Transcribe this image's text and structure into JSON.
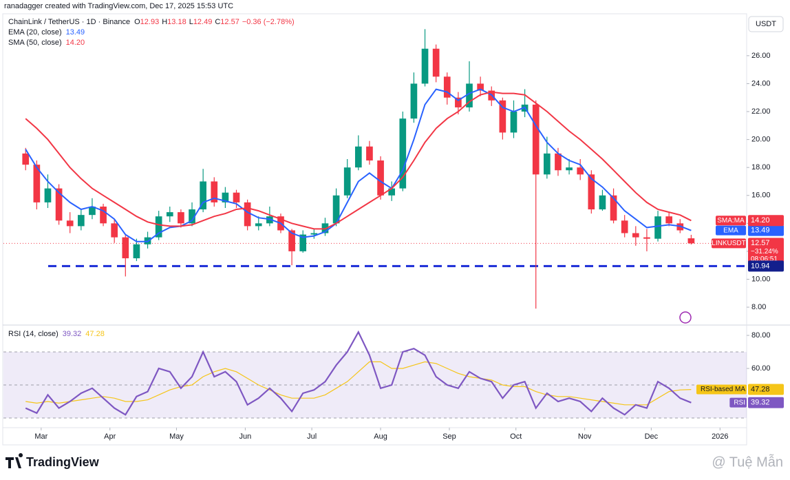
{
  "header": "ranadagger created with TradingView.com, Dec 17, 2025 15:53 UTC",
  "chart_data": [
    {
      "type": "candlestick",
      "title": "ChainLink / TetherUS · 1D · Binance",
      "ohlc_keys": [
        "O",
        "H",
        "L",
        "C"
      ],
      "change": "−0.36 (−2.78%)",
      "axis_unit": "USDT",
      "open": [
        19.0,
        18.2,
        15.5,
        16.5,
        14.2,
        13.8,
        14.6,
        15.2,
        14.0,
        13.0,
        11.5,
        12.5,
        13.0,
        14.5,
        14.8,
        14.0,
        15.0,
        17.0,
        15.5,
        16.2,
        15.5,
        13.8,
        14.0,
        14.5,
        13.5,
        12.0,
        13.2,
        13.3,
        14.0,
        16.0,
        18.0,
        19.5,
        18.5,
        16.0,
        16.5,
        21.5,
        24.0,
        26.5,
        24.5,
        23.0,
        22.3,
        24.0,
        23.5,
        22.8,
        20.5,
        22.0,
        22.5,
        17.5,
        19.0,
        17.8,
        18.0,
        17.5,
        15.0,
        16.0,
        14.2,
        13.3,
        13.0,
        12.9,
        14.5,
        14.0,
        12.93
      ],
      "high": [
        19.4,
        18.5,
        17.5,
        16.8,
        14.8,
        15.0,
        15.8,
        15.4,
        14.3,
        13.2,
        12.9,
        13.4,
        14.9,
        15.2,
        15.0,
        15.5,
        17.9,
        17.3,
        16.6,
        16.4,
        15.7,
        14.5,
        15.2,
        14.7,
        13.6,
        13.5,
        13.6,
        14.4,
        16.5,
        18.6,
        20.3,
        19.9,
        18.8,
        17.0,
        22.0,
        24.8,
        27.9,
        26.8,
        24.8,
        23.4,
        25.6,
        24.5,
        23.8,
        23.0,
        22.8,
        23.6,
        22.8,
        20.2,
        19.4,
        18.6,
        18.6,
        17.8,
        16.4,
        16.5,
        14.6,
        13.8,
        13.6,
        14.9,
        14.8,
        14.3,
        13.18
      ],
      "low": [
        17.8,
        15.0,
        15.1,
        13.9,
        13.3,
        13.5,
        14.3,
        13.8,
        12.6,
        10.2,
        11.3,
        12.2,
        12.8,
        14.1,
        13.7,
        13.8,
        14.8,
        15.2,
        15.1,
        15.1,
        13.5,
        13.5,
        13.8,
        13.3,
        11.0,
        11.9,
        12.9,
        13.1,
        13.8,
        15.8,
        17.8,
        18.2,
        15.7,
        15.6,
        16.3,
        21.2,
        23.8,
        24.1,
        22.5,
        21.8,
        22.0,
        23.1,
        22.4,
        20.0,
        20.1,
        21.6,
        7.9,
        17.2,
        17.4,
        17.5,
        17.1,
        14.7,
        14.9,
        14.0,
        13.0,
        12.4,
        12.0,
        12.7,
        13.8,
        13.3,
        12.49
      ],
      "close": [
        18.2,
        15.5,
        16.5,
        14.2,
        13.8,
        14.6,
        15.2,
        14.0,
        13.0,
        11.5,
        12.5,
        13.0,
        14.5,
        14.8,
        14.0,
        15.0,
        17.0,
        15.5,
        16.2,
        15.5,
        13.8,
        14.0,
        14.5,
        13.5,
        12.0,
        13.2,
        13.3,
        14.0,
        16.0,
        18.0,
        19.5,
        18.5,
        16.0,
        16.5,
        21.5,
        24.0,
        26.5,
        24.5,
        23.0,
        22.3,
        24.0,
        23.5,
        22.8,
        20.5,
        22.0,
        22.5,
        17.5,
        19.0,
        17.8,
        18.0,
        17.5,
        15.0,
        16.0,
        14.2,
        13.3,
        13.0,
        12.9,
        14.5,
        14.0,
        13.5,
        12.57
      ],
      "up_color": "#089981",
      "down_color": "#f23645",
      "xlim": [
        -2,
        65
      ],
      "xticks": [
        {
          "value": 1.4,
          "label": "Mar"
        },
        {
          "value": 7.6,
          "label": "Apr"
        },
        {
          "value": 13.6,
          "label": "May"
        },
        {
          "value": 19.8,
          "label": "Jun"
        },
        {
          "value": 25.8,
          "label": "Jul"
        },
        {
          "value": 32,
          "label": "Aug"
        },
        {
          "value": 38.2,
          "label": "Sep"
        },
        {
          "value": 44.2,
          "label": "Oct"
        },
        {
          "value": 50.4,
          "label": "Nov"
        },
        {
          "value": 56.4,
          "label": "Dec"
        },
        {
          "value": 62.6,
          "label": "2026"
        }
      ],
      "ylim": [
        6.82,
        29
      ],
      "yticks": [
        {
          "value": 8,
          "label": "8.00"
        },
        {
          "value": 10,
          "label": "10.00"
        },
        {
          "value": 12,
          "label": "12.00"
        },
        {
          "value": 14,
          "label": "14.00"
        },
        {
          "value": 16,
          "label": "16.00"
        },
        {
          "value": 18,
          "label": "18.00"
        },
        {
          "value": 20,
          "label": "20.00"
        },
        {
          "value": 22,
          "label": "22.00"
        },
        {
          "value": 24,
          "label": "24.00"
        },
        {
          "value": 26,
          "label": "26.00"
        }
      ],
      "series": [
        {
          "name": "EMA (20, close)",
          "tag": "EMA",
          "last_label": "13.49",
          "color": "#2962ff",
          "values": [
            19.3,
            18.0,
            17.0,
            16.2,
            15.5,
            15.0,
            15.2,
            14.9,
            14.3,
            13.2,
            12.7,
            12.7,
            13.3,
            13.7,
            13.8,
            14.2,
            15.5,
            15.8,
            15.6,
            15.4,
            14.8,
            14.4,
            14.3,
            14.0,
            13.3,
            13.0,
            13.1,
            13.4,
            14.0,
            15.5,
            17.0,
            17.6,
            17.0,
            16.5,
            17.8,
            20.0,
            22.5,
            23.6,
            23.4,
            22.8,
            23.3,
            23.6,
            23.2,
            22.3,
            22.0,
            22.3,
            21.0,
            19.8,
            19.0,
            18.5,
            18.2,
            17.2,
            16.6,
            15.8,
            14.9,
            14.3,
            13.7,
            13.8,
            13.9,
            13.8,
            13.49
          ]
        },
        {
          "name": "SMA (50, close)",
          "tag": "SMA:MA",
          "last_label": "14.20",
          "color": "#f23645",
          "values": [
            21.5,
            20.8,
            20.0,
            19.0,
            18.0,
            17.2,
            16.5,
            16.0,
            15.5,
            15.0,
            14.5,
            14.1,
            13.9,
            13.8,
            13.8,
            13.9,
            14.2,
            14.5,
            14.7,
            15.0,
            15.1,
            14.9,
            14.6,
            14.3,
            14.0,
            13.8,
            13.6,
            13.6,
            14.0,
            14.5,
            15.0,
            15.5,
            16.0,
            16.5,
            17.3,
            18.5,
            19.8,
            20.8,
            21.5,
            22.0,
            22.7,
            23.2,
            23.4,
            23.3,
            23.3,
            23.2,
            22.6,
            22.0,
            21.3,
            20.6,
            20.0,
            19.3,
            18.6,
            17.8,
            17.0,
            16.2,
            15.5,
            15.0,
            14.8,
            14.6,
            14.2
          ]
        }
      ],
      "last_price": {
        "tag": "LINKUSDT",
        "change": "−31.24%",
        "countdown": "08:06:51"
      },
      "support": {
        "value": 10.94,
        "color": "#1a2bd6"
      }
    },
    {
      "type": "line",
      "title": "RSI (14, close)",
      "ylim": [
        24.6,
        85
      ],
      "yticks": [
        {
          "value": 80,
          "label": "80.00"
        },
        {
          "value": 60,
          "label": "60.00"
        }
      ],
      "bands": [
        70,
        50,
        30
      ],
      "band_color": "#7e57c2",
      "series": [
        {
          "name": "RSI",
          "color": "#7e57c2",
          "values": [
            36,
            33,
            44,
            36,
            40,
            45,
            48,
            42,
            36,
            32,
            43,
            46,
            60,
            58,
            48,
            55,
            70,
            55,
            58,
            52,
            38,
            42,
            48,
            42,
            34,
            45,
            47,
            52,
            62,
            70,
            82,
            68,
            48,
            50,
            70,
            72,
            68,
            55,
            50,
            48,
            58,
            54,
            52,
            42,
            50,
            52,
            36,
            45,
            40,
            42,
            40,
            34,
            42,
            36,
            32,
            38,
            36,
            52,
            48,
            42,
            39.32
          ]
        },
        {
          "name": "RSI-based MA",
          "color": "#f5c518",
          "values": [
            40,
            39,
            40,
            39,
            40,
            41,
            42,
            43,
            42,
            40,
            40,
            41,
            44,
            47,
            49,
            50,
            55,
            58,
            60,
            58,
            54,
            50,
            47,
            44,
            42,
            42,
            42,
            44,
            48,
            52,
            58,
            64,
            64,
            60,
            60,
            62,
            64,
            63,
            60,
            57,
            55,
            54,
            53,
            50,
            49,
            49,
            46,
            44,
            43,
            43,
            42,
            41,
            40,
            39,
            38,
            38,
            38,
            42,
            46,
            47,
            47.28
          ]
        }
      ]
    }
  ],
  "footer": {
    "logo": "TradingView",
    "watermark": "@ Tuệ Mẫn"
  }
}
